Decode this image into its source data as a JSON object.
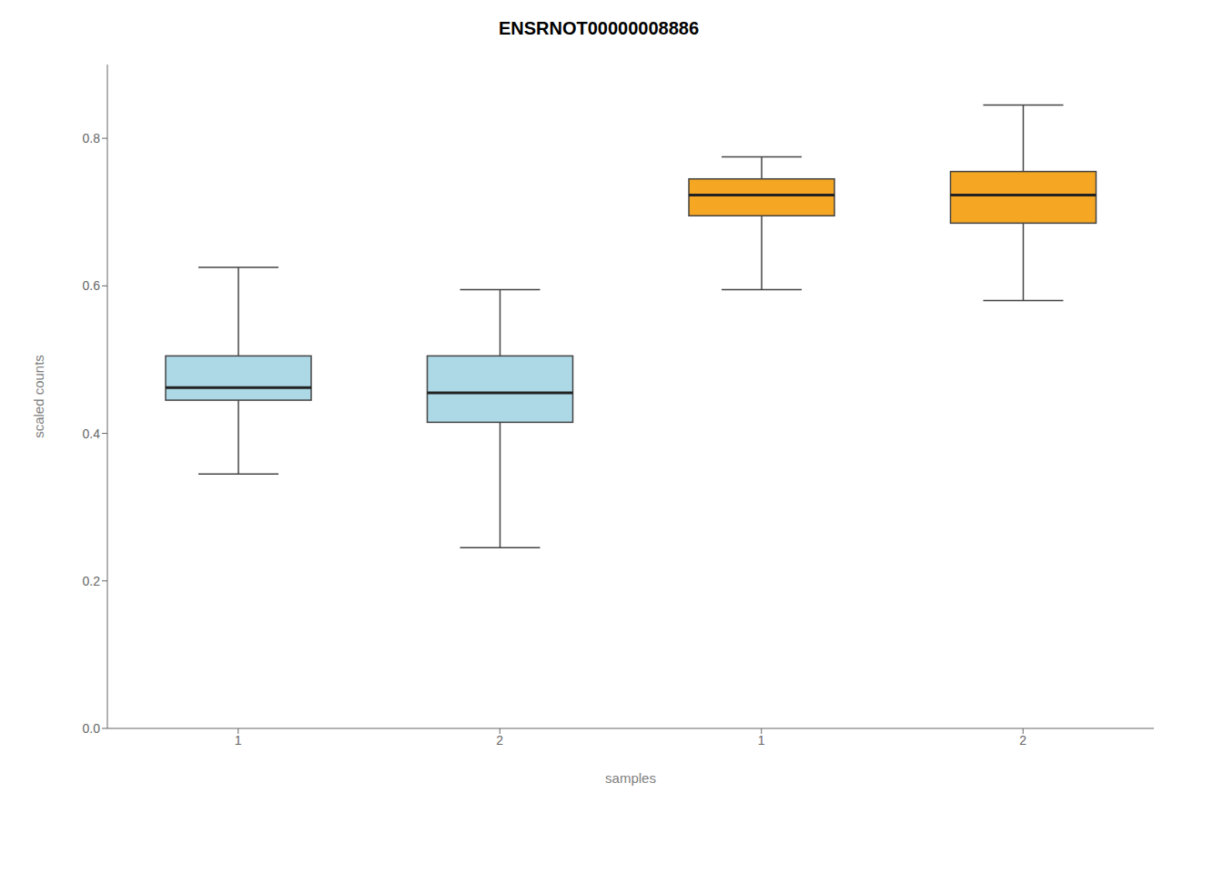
{
  "chart_data": {
    "type": "box",
    "title": "ENSRNOT00000008886",
    "x_label": "samples",
    "y_label": "scaled counts",
    "categories": [
      "1",
      "2",
      "1",
      "2"
    ],
    "whislo": [
      0.345,
      0.245,
      0.595,
      0.58
    ],
    "q1": [
      0.445,
      0.415,
      0.695,
      0.685
    ],
    "median": [
      0.462,
      0.455,
      0.723,
      0.723
    ],
    "q3": [
      0.505,
      0.505,
      0.745,
      0.755
    ],
    "whishi": [
      0.625,
      0.595,
      0.775,
      0.845
    ],
    "colors": [
      "#ADD8E6",
      "#ADD8E6",
      "#F5A623",
      "#F5A623"
    ],
    "ylim": [
      0.0,
      0.9
    ],
    "yticks": [
      {
        "value": 0.0,
        "label": "0.0"
      },
      0.2,
      0.4,
      0.6,
      0.8
    ],
    "grid": false
  }
}
